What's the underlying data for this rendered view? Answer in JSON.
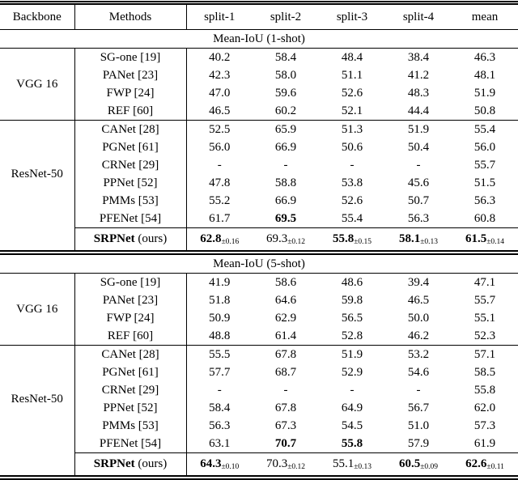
{
  "colors": {
    "background": "#ffffff",
    "text": "#000000",
    "rule": "#000000"
  },
  "table": {
    "header": [
      "Backbone",
      "Methods",
      "split-1",
      "split-2",
      "split-3",
      "split-4",
      "mean"
    ],
    "ours_label": {
      "bold": "SRPNet",
      "rest": " (ours)"
    },
    "sections": [
      {
        "title": "Mean-IoU (1-shot)",
        "groups": [
          {
            "backbone": "VGG 16",
            "rows": [
              {
                "method": "SG-one [19]",
                "values": [
                  "40.2",
                  "58.4",
                  "48.4",
                  "38.4",
                  "46.3"
                ]
              },
              {
                "method": "PANet [23]",
                "values": [
                  "42.3",
                  "58.0",
                  "51.1",
                  "41.2",
                  "48.1"
                ]
              },
              {
                "method": "FWP [24]",
                "values": [
                  "47.0",
                  "59.6",
                  "52.6",
                  "48.3",
                  "51.9"
                ]
              },
              {
                "method": "REF [60]",
                "values": [
                  "46.5",
                  "60.2",
                  "52.1",
                  "44.4",
                  "50.8"
                ]
              }
            ]
          },
          {
            "backbone": "ResNet-50",
            "rows": [
              {
                "method": "CANet [28]",
                "values": [
                  "52.5",
                  "65.9",
                  "51.3",
                  "51.9",
                  "55.4"
                ]
              },
              {
                "method": "PGNet [61]",
                "values": [
                  "56.0",
                  "66.9",
                  "50.6",
                  "50.4",
                  "56.0"
                ]
              },
              {
                "method": "CRNet [29]",
                "values": [
                  "-",
                  "-",
                  "-",
                  "-",
                  "55.7"
                ]
              },
              {
                "method": "PPNet [52]",
                "values": [
                  "47.8",
                  "58.8",
                  "53.8",
                  "45.6",
                  "51.5"
                ]
              },
              {
                "method": "PMMs [53]",
                "values": [
                  "55.2",
                  "66.9",
                  "52.6",
                  "50.7",
                  "56.3"
                ]
              },
              {
                "method": "PFENet [54]",
                "values": [
                  "61.7",
                  "69.5",
                  "55.4",
                  "56.3",
                  "60.8"
                ],
                "bold": [
                  false,
                  true,
                  false,
                  false,
                  false
                ]
              }
            ]
          }
        ],
        "ours": {
          "values": [
            {
              "v": "62.8",
              "sub": "±0.16",
              "bold": true
            },
            {
              "v": "69.3",
              "sub": "±0.12",
              "bold": false
            },
            {
              "v": "55.8",
              "sub": "±0.15",
              "bold": true
            },
            {
              "v": "58.1",
              "sub": "±0.13",
              "bold": true
            },
            {
              "v": "61.5",
              "sub": "±0.14",
              "bold": true
            }
          ]
        }
      },
      {
        "title": "Mean-IoU (5-shot)",
        "groups": [
          {
            "backbone": "VGG 16",
            "rows": [
              {
                "method": "SG-one [19]",
                "values": [
                  "41.9",
                  "58.6",
                  "48.6",
                  "39.4",
                  "47.1"
                ]
              },
              {
                "method": "PANet [23]",
                "values": [
                  "51.8",
                  "64.6",
                  "59.8",
                  "46.5",
                  "55.7"
                ]
              },
              {
                "method": "FWP [24]",
                "values": [
                  "50.9",
                  "62.9",
                  "56.5",
                  "50.0",
                  "55.1"
                ]
              },
              {
                "method": "REF [60]",
                "values": [
                  "48.8",
                  "61.4",
                  "52.8",
                  "46.2",
                  "52.3"
                ]
              }
            ]
          },
          {
            "backbone": "ResNet-50",
            "rows": [
              {
                "method": "CANet [28]",
                "values": [
                  "55.5",
                  "67.8",
                  "51.9",
                  "53.2",
                  "57.1"
                ]
              },
              {
                "method": "PGNet [61]",
                "values": [
                  "57.7",
                  "68.7",
                  "52.9",
                  "54.6",
                  "58.5"
                ]
              },
              {
                "method": "CRNet [29]",
                "values": [
                  "-",
                  "-",
                  "-",
                  "-",
                  "55.8"
                ]
              },
              {
                "method": "PPNet [52]",
                "values": [
                  "58.4",
                  "67.8",
                  "64.9",
                  "56.7",
                  "62.0"
                ]
              },
              {
                "method": "PMMs [53]",
                "values": [
                  "56.3",
                  "67.3",
                  "54.5",
                  "51.0",
                  "57.3"
                ]
              },
              {
                "method": "PFENet [54]",
                "values": [
                  "63.1",
                  "70.7",
                  "55.8",
                  "57.9",
                  "61.9"
                ],
                "bold": [
                  false,
                  true,
                  true,
                  false,
                  false
                ]
              }
            ]
          }
        ],
        "ours": {
          "values": [
            {
              "v": "64.3",
              "sub": "±0.10",
              "bold": true
            },
            {
              "v": "70.3",
              "sub": "±0.12",
              "bold": false
            },
            {
              "v": "55.1",
              "sub": "±0.13",
              "bold": false
            },
            {
              "v": "60.5",
              "sub": "±0.09",
              "bold": true
            },
            {
              "v": "62.6",
              "sub": "±0.11",
              "bold": true
            }
          ]
        }
      }
    ]
  }
}
